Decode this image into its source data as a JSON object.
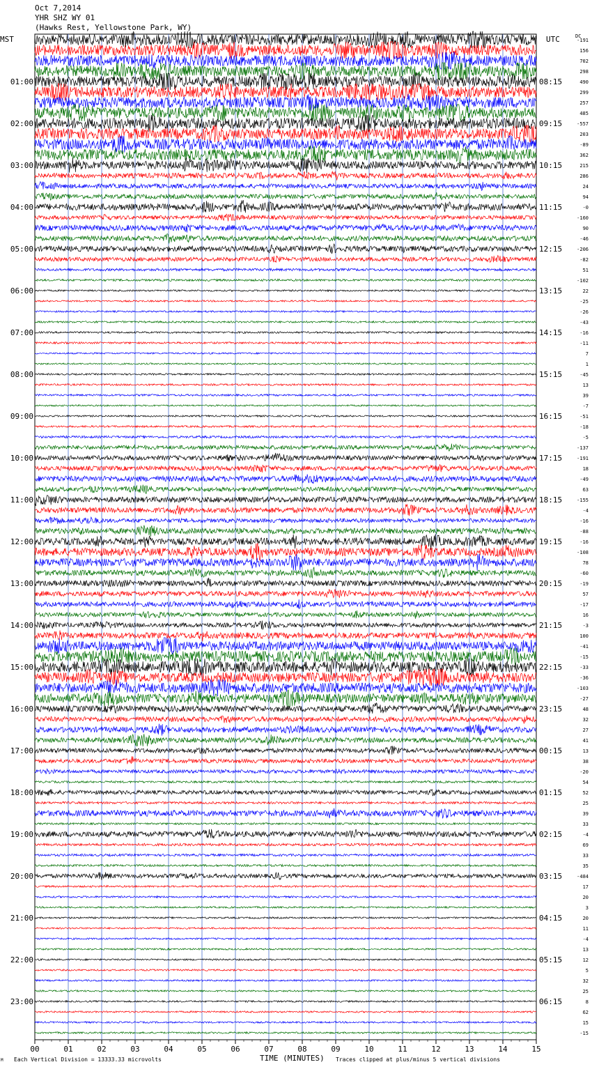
{
  "header": {
    "date": "Oct 7,2014",
    "station": "YHR SHZ WY 01",
    "location": "(Hawks Rest, Yellowstone Park, WY)"
  },
  "left_tz": "MST",
  "right_tz": "UTC",
  "dc_label": "DC",
  "footer": {
    "scale_note": "Each Vertical Division = 13333.33 microvolts",
    "xlabel": "TIME (MINUTES)",
    "clip_note": "Traces clipped at plus/minus 5 vertical divisions",
    "corner_mark": "M"
  },
  "colors": {
    "trace_cycle": [
      "#000000",
      "#ff0000",
      "#0000ff",
      "#007000"
    ],
    "grid": "#4a6fd0"
  },
  "chart_data": {
    "type": "line",
    "title": "YHR SHZ WY 01",
    "xlabel": "TIME (MINUTES)",
    "x_ticks": [
      "00",
      "01",
      "02",
      "03",
      "04",
      "05",
      "06",
      "07",
      "08",
      "09",
      "10",
      "11",
      "12",
      "13",
      "14",
      "15"
    ],
    "xlim": [
      0,
      15
    ],
    "rows_per_hour": 4,
    "left_hour_labels": [
      "01:00",
      "02:00",
      "03:00",
      "04:00",
      "05:00",
      "06:00",
      "07:00",
      "08:00",
      "09:00",
      "10:00",
      "11:00",
      "12:00",
      "13:00",
      "14:00",
      "15:00",
      "16:00",
      "17:00",
      "18:00",
      "19:00",
      "20:00",
      "21:00",
      "22:00",
      "23:00"
    ],
    "right_hour_labels": [
      "08:15",
      "09:15",
      "10:15",
      "11:15",
      "12:15",
      "13:15",
      "14:15",
      "15:15",
      "16:15",
      "17:15",
      "18:15",
      "19:15",
      "20:15",
      "21:15",
      "22:15",
      "23:15",
      "00:15",
      "01:15",
      "02:15",
      "03:15",
      "04:15",
      "05:15",
      "06:15"
    ],
    "dc_offsets": [
      "-191",
      "156",
      "702",
      "298",
      "490",
      "299",
      "257",
      "485",
      "-557",
      "203",
      "-89",
      "362",
      "215",
      "286",
      "24",
      "94",
      "-0",
      "-160",
      "90",
      "-46",
      "-206",
      "-82",
      "51",
      "-102",
      "22",
      "-25",
      "-26",
      "-43",
      "-16",
      "-11",
      "7",
      "1",
      "-45",
      "13",
      "39",
      "-7",
      "-51",
      "-18",
      "-5",
      "-137",
      "-191",
      "18",
      "-49",
      "63",
      "-155",
      "-4",
      "-16",
      "-88",
      "-16",
      "-108",
      "78",
      "-60",
      "-19",
      "57",
      "-17",
      "16",
      "-3",
      "100",
      "-41",
      "-15",
      "-33",
      "-36",
      "-103",
      "-27",
      "48",
      "32",
      "27",
      "41",
      "13",
      "38",
      "-20",
      "54",
      "52",
      "25",
      "39",
      "33",
      "-4",
      "69",
      "33",
      "35",
      "-484",
      "17",
      "20",
      "3",
      "20",
      "11",
      "-4",
      "13",
      "12",
      "5",
      "32",
      "25",
      "8",
      "62",
      "15",
      "-15"
    ],
    "activity": [
      1.0,
      1.0,
      1.0,
      1.0,
      1.0,
      1.0,
      1.0,
      1.0,
      1.0,
      1.0,
      1.0,
      1.0,
      0.7,
      0.4,
      0.35,
      0.35,
      0.55,
      0.3,
      0.45,
      0.4,
      0.45,
      0.3,
      0.15,
      0.1,
      0.06,
      0.06,
      0.06,
      0.08,
      0.08,
      0.08,
      0.05,
      0.05,
      0.06,
      0.08,
      0.08,
      0.05,
      0.06,
      0.08,
      0.12,
      0.3,
      0.35,
      0.35,
      0.45,
      0.35,
      0.45,
      0.45,
      0.3,
      0.45,
      0.6,
      0.7,
      0.7,
      0.45,
      0.45,
      0.4,
      0.4,
      0.3,
      0.35,
      0.5,
      0.8,
      1.0,
      1.0,
      0.9,
      0.9,
      0.8,
      0.5,
      0.4,
      0.45,
      0.4,
      0.35,
      0.3,
      0.25,
      0.1,
      0.3,
      0.12,
      0.5,
      0.08,
      0.45,
      0.15,
      0.12,
      0.1,
      0.3,
      0.08,
      0.08,
      0.06,
      0.06,
      0.06,
      0.06,
      0.06,
      0.06,
      0.06,
      0.06,
      0.06,
      0.06,
      0.06,
      0.06,
      0.06
    ]
  }
}
